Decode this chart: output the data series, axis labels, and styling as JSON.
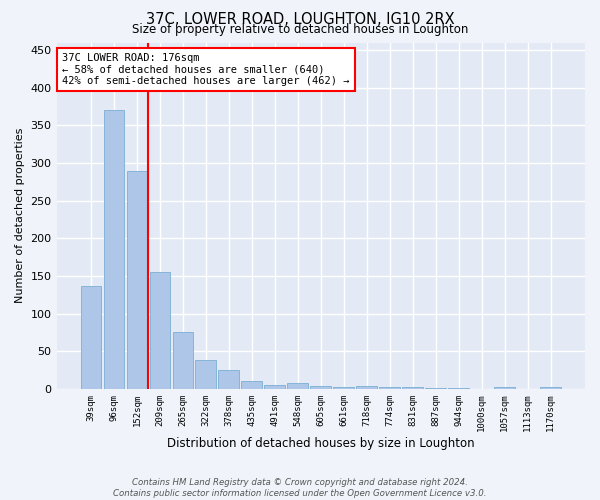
{
  "title": "37C, LOWER ROAD, LOUGHTON, IG10 2RX",
  "subtitle": "Size of property relative to detached houses in Loughton",
  "xlabel": "Distribution of detached houses by size in Loughton",
  "ylabel": "Number of detached properties",
  "categories": [
    "39sqm",
    "96sqm",
    "152sqm",
    "209sqm",
    "265sqm",
    "322sqm",
    "378sqm",
    "435sqm",
    "491sqm",
    "548sqm",
    "605sqm",
    "661sqm",
    "718sqm",
    "774sqm",
    "831sqm",
    "887sqm",
    "944sqm",
    "1000sqm",
    "1057sqm",
    "1113sqm",
    "1170sqm"
  ],
  "values": [
    137,
    370,
    289,
    155,
    75,
    38,
    25,
    10,
    5,
    8,
    4,
    3,
    4,
    3,
    2,
    1,
    1,
    0,
    3,
    0,
    3
  ],
  "bar_color": "#aec6e8",
  "bar_edge_color": "#7aafd4",
  "vline_position": 2.5,
  "annotation_text_line1": "37C LOWER ROAD: 176sqm",
  "annotation_text_line2": "← 58% of detached houses are smaller (640)",
  "annotation_text_line3": "42% of semi-detached houses are larger (462) →",
  "ylim": [
    0,
    460
  ],
  "yticks": [
    0,
    50,
    100,
    150,
    200,
    250,
    300,
    350,
    400,
    450
  ],
  "bg_color": "#f0f4fa",
  "plot_bg_color": "#e4eaf5",
  "grid_color": "#ffffff",
  "footer_line1": "Contains HM Land Registry data © Crown copyright and database right 2024.",
  "footer_line2": "Contains public sector information licensed under the Open Government Licence v3.0."
}
